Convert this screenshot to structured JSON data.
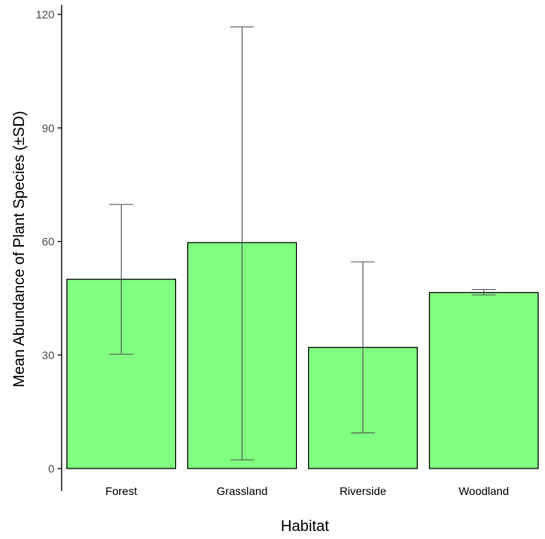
{
  "chart_data": {
    "type": "bar",
    "title": "",
    "xlabel": "Habitat",
    "ylabel": "Mean Abundance of Plant Species (±SD)",
    "categories": [
      "Forest",
      "Grassland",
      "Riverside",
      "Woodland"
    ],
    "values": [
      50,
      59.7,
      32,
      46.5
    ],
    "error_low": [
      30.2,
      2.3,
      9.4,
      45.9
    ],
    "error_high": [
      69.8,
      116.7,
      54.6,
      47.3
    ],
    "yticks": [
      0,
      30,
      60,
      90,
      120
    ],
    "ylim": [
      0,
      120
    ],
    "grid": false,
    "legend": "none",
    "colors": {
      "bar_fill": "#80ff80",
      "bar_stroke": "#000000",
      "error_bar": "#555555",
      "axis": "#000000",
      "tick_text": "#4d4d4d",
      "label_text": "#000000"
    }
  }
}
